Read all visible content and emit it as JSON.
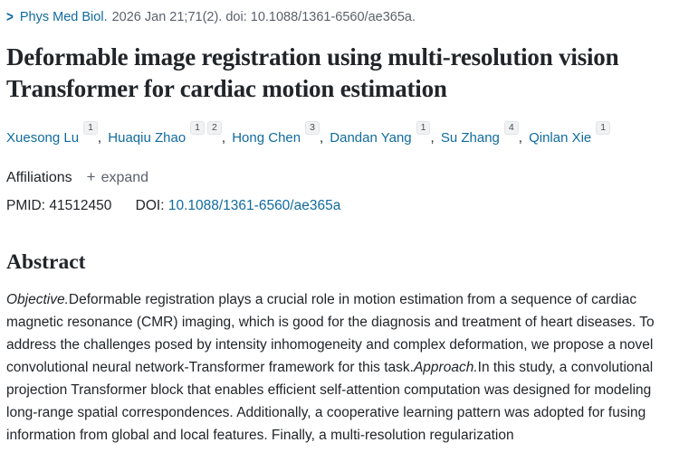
{
  "icons": {
    "chevron_right": ">",
    "plus": "+"
  },
  "header": {
    "journal": "Phys Med Biol.",
    "citation": "2026 Jan 21;71(2). doi: 10.1088/1361-6560/ae365a."
  },
  "article": {
    "title": "Deformable image registration using multi-resolution vision Transformer for cardiac motion estimation"
  },
  "authors": [
    {
      "name": "Xuesong Lu",
      "sups": [
        "1"
      ]
    },
    {
      "name": "Huaqiu Zhao",
      "sups": [
        "1",
        "2"
      ]
    },
    {
      "name": "Hong Chen",
      "sups": [
        "3"
      ]
    },
    {
      "name": "Dandan Yang",
      "sups": [
        "1"
      ]
    },
    {
      "name": "Su Zhang",
      "sups": [
        "4"
      ]
    },
    {
      "name": "Qinlan Xie",
      "sups": [
        "1"
      ]
    }
  ],
  "author_separator": ",",
  "affiliations": {
    "label": "Affiliations",
    "expand_label": "expand"
  },
  "identifiers": {
    "pmid_label": "PMID:",
    "pmid": "41512450",
    "doi_label": "DOI:",
    "doi": "10.1088/1361-6560/ae365a"
  },
  "abstract": {
    "heading": "Abstract",
    "objective_label": "Objective.",
    "objective_text": "Deformable registration plays a crucial role in motion estimation from a sequence of cardiac magnetic resonance (CMR) imaging, which is good for the diagnosis and treatment of heart diseases. To address the challenges posed by intensity inhomogeneity and complex deformation, we propose a novel convolutional neural network-Transformer framework for this task.",
    "approach_label": "Approach.",
    "approach_text": "In this study, a convolutional projection Transformer block that enables efficient self-attention computation was designed for modeling long-range spatial correspondences. Additionally, a cooperative learning pattern was adopted for fusing information from global and local features. Finally, a multi-resolution regularization"
  },
  "colors": {
    "link_blue": "#106ba0",
    "text": "#212529",
    "muted_gray": "#5b616b"
  }
}
